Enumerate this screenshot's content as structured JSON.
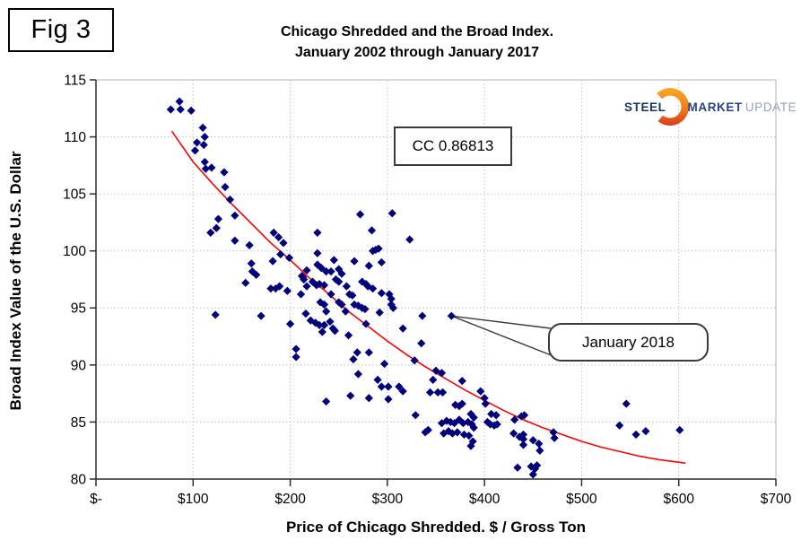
{
  "figure_label": "Fig 3",
  "logo": {
    "steel": "STEEL",
    "market": "MARKET",
    "update": "UPDATE"
  },
  "annotations": {
    "correlation": "CC 0.86813",
    "callout": "January 2018"
  },
  "chart_data": {
    "type": "scatter",
    "title_lines": [
      "Chicago Shredded and the Broad Index.",
      "January 2002 through January 2017"
    ],
    "xlabel": "Price of Chicago Shredded. $ / Gross Ton",
    "ylabel": "Broad Index Value of the U.S. Dollar",
    "xlim": [
      0,
      700
    ],
    "ylim": [
      80,
      115
    ],
    "x_tick_labels": [
      "$-",
      "$100",
      "$200",
      "$300",
      "$400",
      "$500",
      "$600",
      "$700"
    ],
    "x_tick_values": [
      0,
      100,
      200,
      300,
      400,
      500,
      600,
      700
    ],
    "y_tick_values": [
      80,
      85,
      90,
      95,
      100,
      105,
      110,
      115
    ],
    "grid": true,
    "legend": false,
    "marker": "diamond",
    "colors": {
      "points": "#00007c",
      "trend": "#ff0000",
      "grid": "#c1c1c1",
      "axis": "#2e2e2e",
      "frame": "#b3b3b3"
    },
    "labeled_point": {
      "label": "January 2018",
      "x": 366,
      "y": 94.3
    },
    "correlation_note": "CC 0.86813",
    "trend_line": [
      [
        78,
        110.5
      ],
      [
        100,
        107.8
      ],
      [
        120,
        105.9
      ],
      [
        140,
        104.1
      ],
      [
        160,
        102.4
      ],
      [
        180,
        100.7
      ],
      [
        200,
        99.2
      ],
      [
        220,
        97.6
      ],
      [
        240,
        96.2
      ],
      [
        260,
        94.7
      ],
      [
        280,
        93.4
      ],
      [
        300,
        92.1
      ],
      [
        320,
        90.9
      ],
      [
        340,
        89.8
      ],
      [
        360,
        88.8
      ],
      [
        380,
        87.8
      ],
      [
        400,
        86.9
      ],
      [
        420,
        86.0
      ],
      [
        440,
        85.2
      ],
      [
        460,
        84.5
      ],
      [
        480,
        83.9
      ],
      [
        500,
        83.3
      ],
      [
        520,
        82.8
      ],
      [
        540,
        82.4
      ],
      [
        560,
        82.0
      ],
      [
        580,
        81.7
      ],
      [
        607,
        81.4
      ]
    ],
    "points": [
      [
        77,
        112.4
      ],
      [
        86,
        113.1
      ],
      [
        87,
        112.4
      ],
      [
        98,
        112.3
      ],
      [
        110,
        110.8
      ],
      [
        112,
        110.0
      ],
      [
        104,
        109.5
      ],
      [
        111,
        109.3
      ],
      [
        102,
        108.8
      ],
      [
        112,
        107.8
      ],
      [
        113,
        107.2
      ],
      [
        119,
        107.3
      ],
      [
        132,
        106.9
      ],
      [
        133,
        105.6
      ],
      [
        138,
        104.5
      ],
      [
        143,
        103.1
      ],
      [
        126,
        102.8
      ],
      [
        124,
        102.0
      ],
      [
        118,
        101.6
      ],
      [
        143,
        100.9
      ],
      [
        158,
        100.5
      ],
      [
        183,
        101.6
      ],
      [
        188,
        101.2
      ],
      [
        193,
        100.7
      ],
      [
        123,
        94.4
      ],
      [
        190,
        99.7
      ],
      [
        160,
        98.9
      ],
      [
        182,
        99.1
      ],
      [
        161,
        98.2
      ],
      [
        165,
        97.9
      ],
      [
        199,
        99.4
      ],
      [
        154,
        97.2
      ],
      [
        180,
        96.7
      ],
      [
        185,
        96.7
      ],
      [
        189,
        96.9
      ],
      [
        197,
        96.5
      ],
      [
        211,
        96.2
      ],
      [
        212,
        97.8
      ],
      [
        214,
        97.5
      ],
      [
        170,
        94.3
      ],
      [
        200,
        93.6
      ],
      [
        206,
        91.4
      ],
      [
        206,
        90.7
      ],
      [
        272,
        103.2
      ],
      [
        305,
        103.3
      ],
      [
        228,
        101.6
      ],
      [
        284,
        101.8
      ],
      [
        323,
        101.0
      ],
      [
        213,
        97.7
      ],
      [
        228,
        99.8
      ],
      [
        228,
        98.8
      ],
      [
        217,
        98.3
      ],
      [
        245,
        99.2
      ],
      [
        285,
        100.0
      ],
      [
        291,
        100.2
      ],
      [
        294,
        99.0
      ],
      [
        281,
        98.7
      ],
      [
        237,
        98.2
      ],
      [
        250,
        98.4
      ],
      [
        253,
        98.0
      ],
      [
        247,
        97.5
      ],
      [
        250,
        97.3
      ],
      [
        223,
        97.3
      ],
      [
        227,
        97.0
      ],
      [
        230,
        97.1
      ],
      [
        235,
        97.0
      ],
      [
        217,
        96.9
      ],
      [
        258,
        96.9
      ],
      [
        274,
        97.3
      ],
      [
        278,
        97.1
      ],
      [
        280,
        96.9
      ],
      [
        285,
        96.7
      ],
      [
        261,
        96.2
      ],
      [
        264,
        96.1
      ],
      [
        231,
        95.5
      ],
      [
        235,
        95.3
      ],
      [
        250,
        95.5
      ],
      [
        253,
        95.3
      ],
      [
        266,
        95.3
      ],
      [
        270,
        95.2
      ],
      [
        274,
        95.0
      ],
      [
        277,
        94.9
      ],
      [
        292,
        94.6
      ],
      [
        302,
        96.2
      ],
      [
        304,
        95.8
      ],
      [
        304,
        95.3
      ],
      [
        306,
        95.0
      ],
      [
        221,
        93.9
      ],
      [
        226,
        93.7
      ],
      [
        230,
        93.5
      ],
      [
        235,
        93.5
      ],
      [
        241,
        93.8
      ],
      [
        244,
        93.2
      ],
      [
        216,
        94.5
      ],
      [
        260,
        92.6
      ],
      [
        278,
        93.6
      ],
      [
        316,
        93.2
      ],
      [
        242,
        96.2
      ],
      [
        294,
        96.3
      ],
      [
        288,
        100.1
      ],
      [
        266,
        99.1
      ],
      [
        242,
        98.2
      ],
      [
        232,
        98.5
      ],
      [
        237,
        94.7
      ],
      [
        257,
        94.7
      ],
      [
        233,
        92.9
      ],
      [
        246,
        93.0
      ],
      [
        335,
        91.9
      ],
      [
        265,
        90.5
      ],
      [
        269,
        91.1
      ],
      [
        281,
        91.1
      ],
      [
        297,
        90.1
      ],
      [
        328,
        90.4
      ],
      [
        270,
        89.2
      ],
      [
        350,
        89.5
      ],
      [
        356,
        89.3
      ],
      [
        336,
        94.3
      ],
      [
        290,
        88.7
      ],
      [
        294,
        88.1
      ],
      [
        301,
        88.1
      ],
      [
        312,
        88.1
      ],
      [
        316,
        87.7
      ],
      [
        262,
        87.3
      ],
      [
        281,
        87.1
      ],
      [
        301,
        87.0
      ],
      [
        237,
        86.8
      ],
      [
        344,
        87.6
      ],
      [
        352,
        87.6
      ],
      [
        357,
        87.6
      ],
      [
        347,
        88.7
      ],
      [
        377,
        88.6
      ],
      [
        396,
        87.7
      ],
      [
        400,
        87.1
      ],
      [
        401,
        86.6
      ],
      [
        370,
        86.5
      ],
      [
        374,
        86.4
      ],
      [
        377,
        86.6
      ],
      [
        329,
        85.6
      ],
      [
        386,
        85.7
      ],
      [
        389,
        85.4
      ],
      [
        407,
        85.7
      ],
      [
        412,
        85.6
      ],
      [
        356,
        84.9
      ],
      [
        361,
        85.1
      ],
      [
        365,
        85.0
      ],
      [
        369,
        84.9
      ],
      [
        374,
        85.2
      ],
      [
        378,
        84.9
      ],
      [
        383,
        85.0
      ],
      [
        387,
        84.8
      ],
      [
        389,
        84.5
      ],
      [
        403,
        85.0
      ],
      [
        406,
        84.8
      ],
      [
        410,
        84.7
      ],
      [
        413,
        84.8
      ],
      [
        431,
        85.2
      ],
      [
        438,
        85.5
      ],
      [
        441,
        85.6
      ],
      [
        339,
        84.1
      ],
      [
        342,
        84.3
      ],
      [
        358,
        84.0
      ],
      [
        363,
        84.2
      ],
      [
        367,
        84.0
      ],
      [
        372,
        84.1
      ],
      [
        379,
        83.9
      ],
      [
        384,
        83.8
      ],
      [
        388,
        83.3
      ],
      [
        386,
        82.9
      ],
      [
        430,
        84.0
      ],
      [
        436,
        83.7
      ],
      [
        440,
        83.9
      ],
      [
        440,
        83.5
      ],
      [
        440,
        83.0
      ],
      [
        450,
        83.4
      ],
      [
        456,
        83.1
      ],
      [
        457,
        82.5
      ],
      [
        471,
        84.1
      ],
      [
        472,
        83.6
      ],
      [
        434,
        81.0
      ],
      [
        448,
        81.1
      ],
      [
        452,
        80.9
      ],
      [
        454,
        81.2
      ],
      [
        450,
        80.4
      ],
      [
        546,
        86.6
      ],
      [
        539,
        84.7
      ],
      [
        556,
        83.9
      ],
      [
        566,
        84.2
      ],
      [
        601,
        84.3
      ]
    ]
  }
}
